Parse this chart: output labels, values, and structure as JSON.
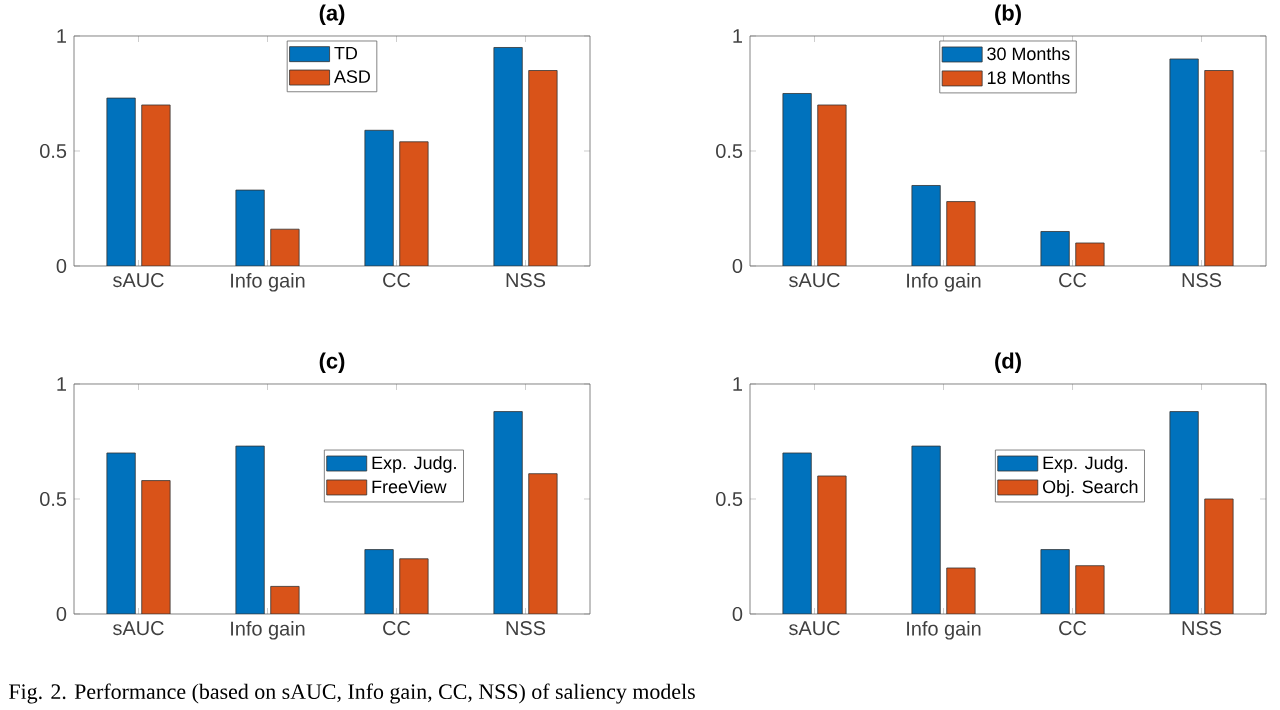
{
  "chart_data": [
    {
      "type": "bar",
      "title": "(a)",
      "categories": [
        "sAUC",
        "Info gain",
        "CC",
        "NSS"
      ],
      "ylim": [
        0,
        1
      ],
      "yticks": [
        0,
        0.5,
        1
      ],
      "legend": "top",
      "annotations": [
        "Fig. 2. Performance (based on sAUC, Info gain, CC, NSS) of saliency models"
      ],
      "series": [
        {
          "name": "TD",
          "color": "#0072bd",
          "values": [
            0.73,
            0.33,
            0.59,
            0.95
          ]
        },
        {
          "name": "ASD",
          "color": "#d95319",
          "values": [
            0.7,
            0.16,
            0.54,
            0.85
          ]
        }
      ]
    },
    {
      "type": "bar",
      "title": "(b)",
      "categories": [
        "sAUC",
        "Info gain",
        "CC",
        "NSS"
      ],
      "ylim": [
        0,
        1
      ],
      "yticks": [
        0,
        0.5,
        1
      ],
      "legend": "top",
      "series": [
        {
          "name": "30 Months",
          "color": "#0072bd",
          "values": [
            0.75,
            0.35,
            0.15,
            0.9
          ]
        },
        {
          "name": "18 Months",
          "color": "#d95319",
          "values": [
            0.7,
            0.28,
            0.1,
            0.85
          ]
        }
      ]
    },
    {
      "type": "bar",
      "title": "(c)",
      "categories": [
        "sAUC",
        "Info gain",
        "CC",
        "NSS"
      ],
      "ylim": [
        0,
        1
      ],
      "yticks": [
        0,
        0.5,
        1
      ],
      "legend": "center",
      "series": [
        {
          "name": "Exp. Judg.",
          "color": "#0072bd",
          "values": [
            0.7,
            0.73,
            0.28,
            0.88
          ]
        },
        {
          "name": "FreeView",
          "color": "#d95319",
          "values": [
            0.58,
            0.12,
            0.24,
            0.61
          ]
        }
      ]
    },
    {
      "type": "bar",
      "title": "(d)",
      "categories": [
        "sAUC",
        "Info gain",
        "CC",
        "NSS"
      ],
      "ylim": [
        0,
        1
      ],
      "yticks": [
        0,
        0.5,
        1
      ],
      "legend": "center",
      "series": [
        {
          "name": "Exp. Judg.",
          "color": "#0072bd",
          "values": [
            0.7,
            0.73,
            0.28,
            0.88
          ]
        },
        {
          "name": "Obj. Search",
          "color": "#d95319",
          "values": [
            0.6,
            0.2,
            0.21,
            0.5
          ]
        }
      ]
    }
  ]
}
